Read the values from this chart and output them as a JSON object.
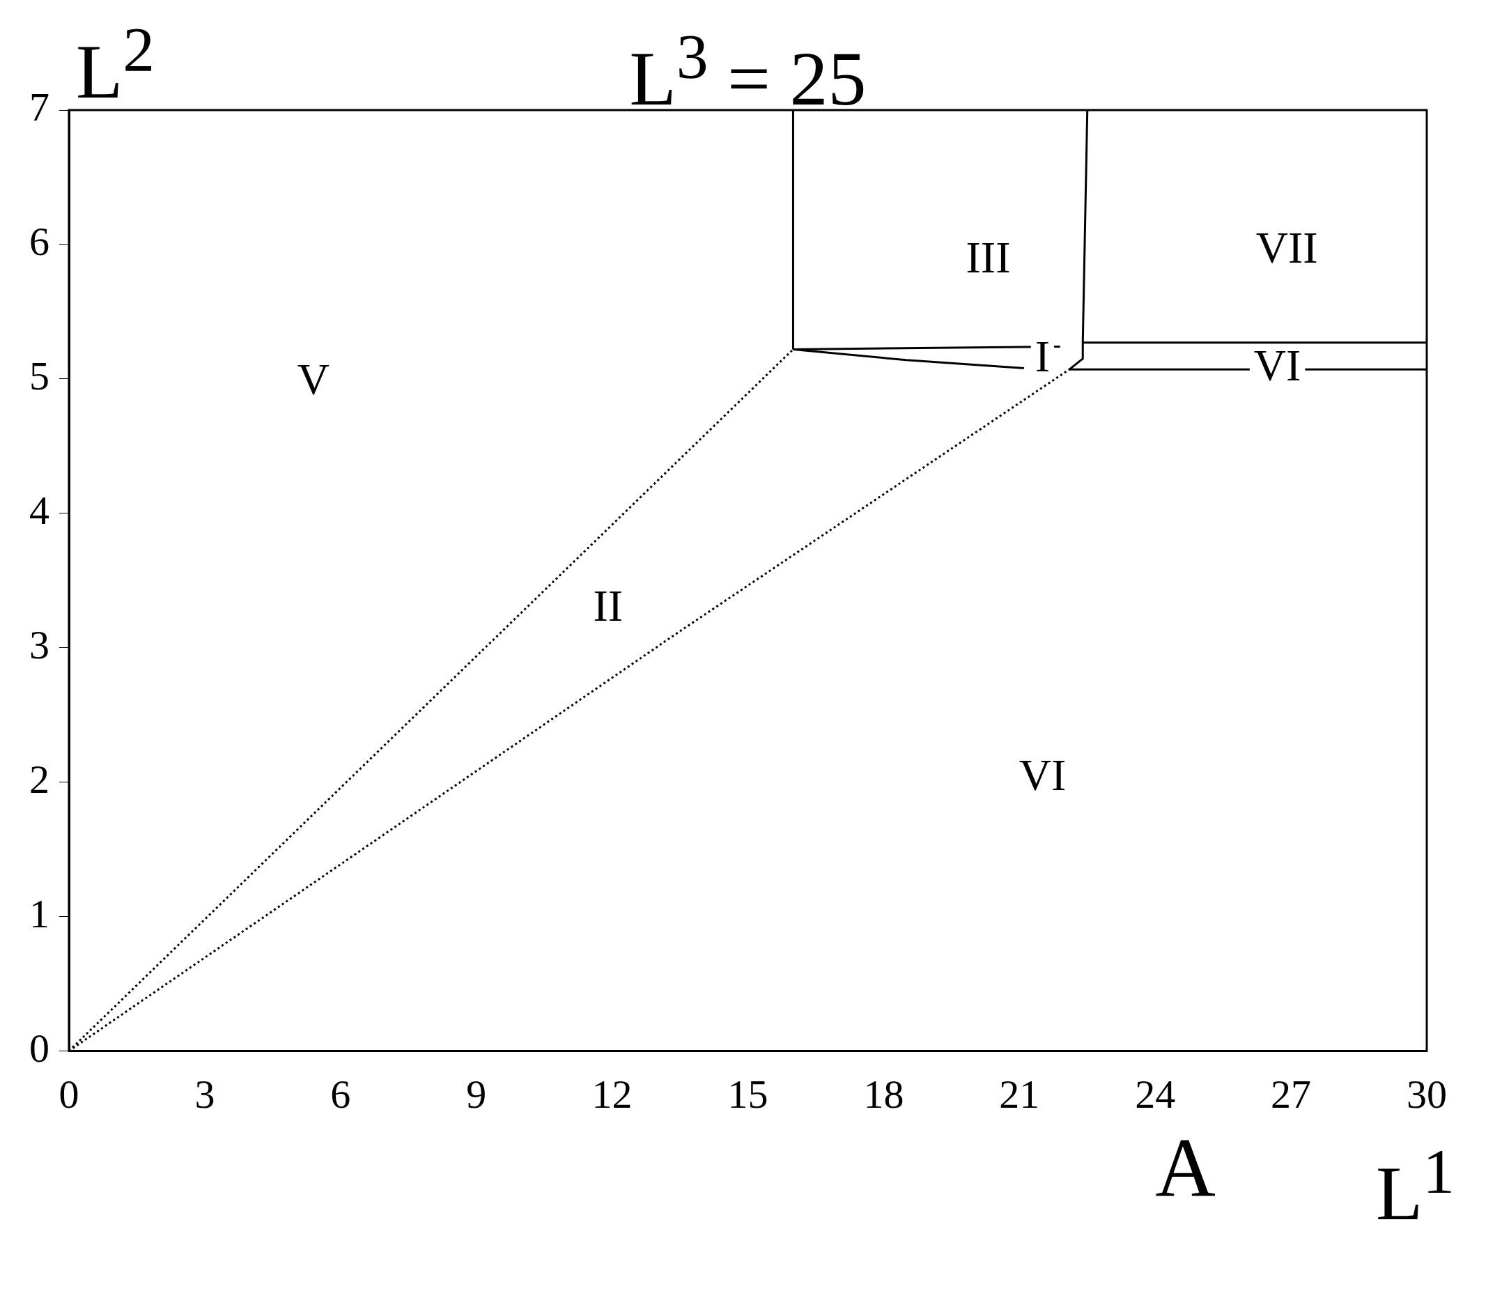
{
  "chart_data": {
    "type": "line",
    "title": "L$^{3}$ = 25",
    "xlabel": "L$^{1}$",
    "ylabel": "L$^{2}$",
    "xlim": [
      0,
      30
    ],
    "xticks": [
      0,
      3,
      6,
      9,
      12,
      15,
      18,
      21,
      24,
      27,
      30
    ],
    "ylim": [
      0,
      7
    ],
    "yticks": [
      0,
      1,
      2,
      3,
      4,
      5,
      6,
      7
    ],
    "grid": false,
    "legend": false,
    "marker": "none",
    "series": [
      {
        "color": "#000000",
        "line_style": "dotted",
        "x": [
          0,
          16
        ],
        "values": [
          0,
          5.22
        ]
      },
      {
        "color": "#000000",
        "line_style": "dotted",
        "x": [
          0,
          13.4,
          22.1
        ],
        "values": [
          0,
          3.1,
          5.07
        ]
      },
      {
        "color": "#000000",
        "line_style": "solid",
        "x": [
          16,
          16
        ],
        "values": [
          5.22,
          7
        ]
      },
      {
        "color": "#000000",
        "line_style": "solid",
        "x": [
          16,
          21.9
        ],
        "values": [
          5.22,
          5.24
        ]
      },
      {
        "color": "#000000",
        "line_style": "solid",
        "x": [
          16,
          18.5,
          21.1
        ],
        "values": [
          5.22,
          5.14,
          5.08
        ]
      },
      {
        "color": "#000000",
        "line_style": "solid",
        "x": [
          22.1,
          22.4,
          22.4,
          22.5
        ],
        "values": [
          5.07,
          5.15,
          5.27,
          7
        ]
      },
      {
        "color": "#000000",
        "line_style": "solid",
        "x": [
          22.4,
          30
        ],
        "values": [
          5.27,
          5.27
        ]
      },
      {
        "color": "#000000",
        "line_style": "solid",
        "x": [
          22.1,
          30
        ],
        "values": [
          5.07,
          5.07
        ]
      }
    ],
    "annotations": [
      "V",
      "II",
      "III",
      "VII",
      "I",
      "VI",
      "VI",
      "A"
    ]
  }
}
